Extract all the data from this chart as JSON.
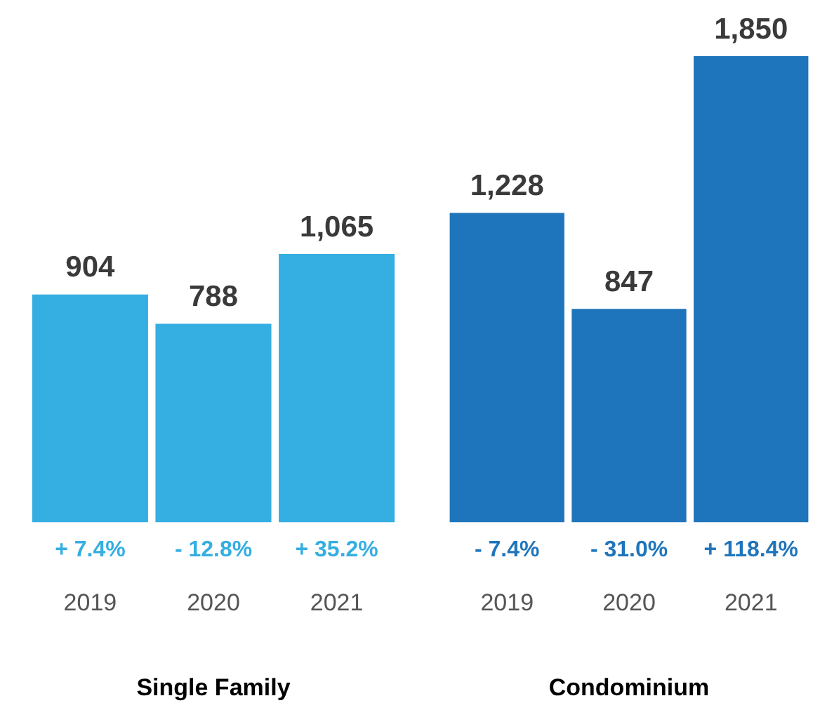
{
  "chart_data": [
    {
      "type": "bar",
      "xlabel": "Single Family",
      "categories": [
        "2019",
        "2020",
        "2021"
      ],
      "values": [
        904,
        788,
        1065
      ],
      "color": "#35aee2",
      "tick_labels": "x",
      "value_labels": [
        "904",
        "788",
        "1,065"
      ],
      "annotations": [
        "+ 7.4%",
        "- 12.8%",
        "+ 35.2%"
      ]
    },
    {
      "type": "bar",
      "xlabel": "Condominium",
      "categories": [
        "2019",
        "2020",
        "2021"
      ],
      "values": [
        1228,
        847,
        1850
      ],
      "color": "#1f75bb",
      "tick_labels": "x",
      "value_labels": [
        "1,228",
        "847",
        "1,850"
      ],
      "annotations": [
        "- 7.4%",
        "- 31.0%",
        "+ 118.4%"
      ]
    }
  ]
}
